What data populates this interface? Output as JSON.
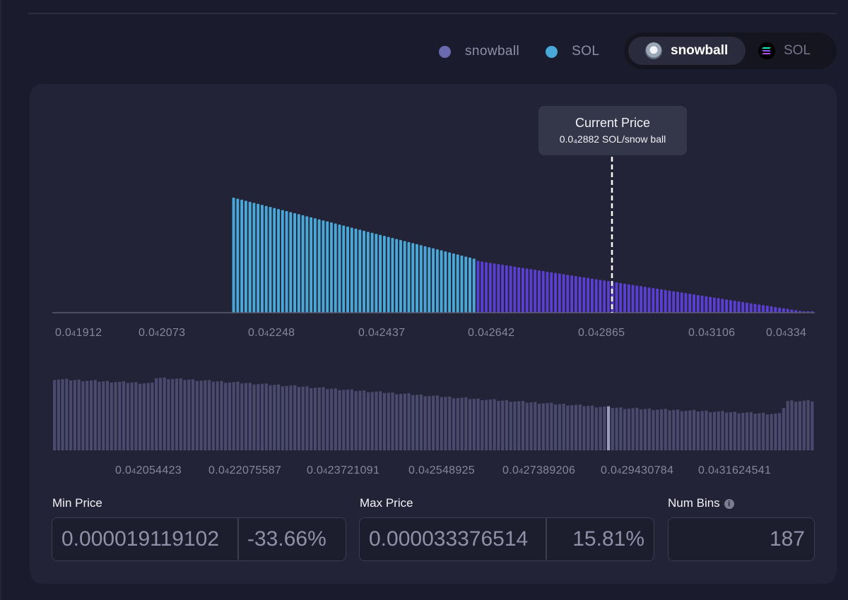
{
  "legend": [
    {
      "label": "snowball",
      "color": "#6b6ab0"
    },
    {
      "label": "SOL",
      "color": "#4aa8d8"
    }
  ],
  "token_toggle": {
    "active": "snowball",
    "inactive": "SOL"
  },
  "tooltip": {
    "title": "Current Price",
    "value": "0.0₄2882 SOL/snow ball"
  },
  "colors": {
    "sol_bars": "#4aa8d8",
    "snowball_bars": "#5a3fd0",
    "volume_bars": "#4a4a6e",
    "volume_highlight": "#9c9ac0",
    "axis": "#5c5d72"
  },
  "main_axis_ticks": [
    "0.0₄1912",
    "0.0₄2073",
    "0.0₄2248",
    "0.0₄2437",
    "0.0₄2642",
    "0.0₄2865",
    "0.0₄3106",
    "0.0₄334"
  ],
  "range_axis_ticks": [
    "0.0₄2054423",
    "0.0₄22075587",
    "0.0₄23721091",
    "0.0₄2548925",
    "0.0₄27389206",
    "0.0₄29430784",
    "0.0₄31624541"
  ],
  "chart_data": [
    {
      "type": "bar",
      "title": "",
      "bins": 187,
      "current_price": "0.0₄2882",
      "active_bin_index": 104,
      "series": [
        {
          "name": "SOL",
          "bins": [
            44,
            103
          ],
          "relative_height_start": 1.0,
          "relative_height_end": 0.47
        },
        {
          "name": "snowball",
          "bins": [
            104,
            186
          ],
          "relative_height_start": 0.45,
          "relative_height_end": 0.0
        }
      ],
      "x_ticks": [
        "0.0₄1912",
        "0.0₄2073",
        "0.0₄2248",
        "0.0₄2437",
        "0.0₄2642",
        "0.0₄2865",
        "0.0₄3106",
        "0.0₄334"
      ]
    },
    {
      "type": "bar",
      "title": "",
      "bins": 187,
      "highlight_bin_index": 136,
      "relative_heights_keypoints": [
        [
          0,
          0.98
        ],
        [
          24,
          0.92
        ],
        [
          25,
          1.0
        ],
        [
          60,
          0.88
        ],
        [
          100,
          0.72
        ],
        [
          140,
          0.58
        ],
        [
          178,
          0.5
        ],
        [
          180,
          0.68
        ],
        [
          186,
          0.68
        ]
      ],
      "x_ticks": [
        "0.0₄2054423",
        "0.0₄22075587",
        "0.0₄23721091",
        "0.0₄2548925",
        "0.0₄27389206",
        "0.0₄29430784",
        "0.0₄31624541"
      ]
    }
  ],
  "min_price": {
    "label": "Min Price",
    "value": "0.000019119102",
    "percent": "-33.66%"
  },
  "max_price": {
    "label": "Max Price",
    "value": "0.000033376514",
    "percent": "15.81%"
  },
  "num_bins": {
    "label": "Num Bins",
    "value": "187",
    "info_icon": "info-icon"
  }
}
